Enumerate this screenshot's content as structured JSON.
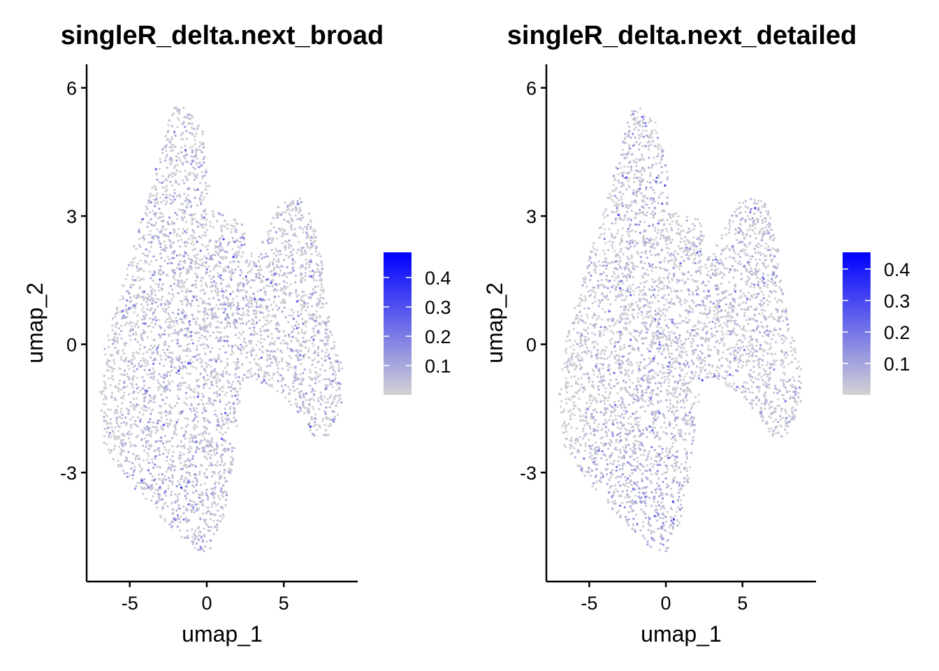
{
  "chart_data": [
    {
      "type": "scatter",
      "title": "singleR_delta.next_broad",
      "xlabel": "umap_1",
      "ylabel": "umap_2",
      "xticks": [
        -5,
        0,
        5
      ],
      "yticks": [
        -3,
        0,
        3,
        6
      ],
      "xlim": [
        -7.8,
        9.8
      ],
      "ylim": [
        -5.55,
        6.55
      ],
      "grid": false,
      "legend": {
        "position": "right",
        "type": "colorbar",
        "ticks": [
          0.4,
          0.3,
          0.2,
          0.1
        ],
        "tick_labels": [
          "0.4",
          "0.3",
          "0.2",
          "0.1"
        ],
        "range": [
          0.0,
          0.486
        ],
        "low_color": "#d3d3d3",
        "high_color": "#0000ff"
      },
      "points": {
        "n": 4000,
        "seed": 11,
        "value_scale": 0.055,
        "lower_boost": 0.04
      },
      "cloud_outline": [
        [
          -1.73,
          5.69
        ],
        [
          -0.27,
          5.03
        ],
        [
          0.18,
          3.81
        ],
        [
          0.18,
          3.15
        ],
        [
          0.86,
          3.07
        ],
        [
          2.23,
          2.91
        ],
        [
          2.55,
          2.5
        ],
        [
          2.23,
          1.85
        ],
        [
          3.36,
          2.34
        ],
        [
          4.73,
          3.32
        ],
        [
          6.09,
          3.48
        ],
        [
          6.77,
          3.15
        ],
        [
          7.45,
          2.01
        ],
        [
          7.91,
          0.7
        ],
        [
          8.82,
          -0.6
        ],
        [
          8.82,
          -1.42
        ],
        [
          7.91,
          -2.16
        ],
        [
          7.0,
          -2.16
        ],
        [
          6.09,
          -1.75
        ],
        [
          5.18,
          -1.26
        ],
        [
          2.91,
          -0.77
        ],
        [
          2.23,
          -1.09
        ],
        [
          2.0,
          -1.75
        ],
        [
          1.77,
          -2.73
        ],
        [
          1.09,
          -4.04
        ],
        [
          0.18,
          -4.85
        ],
        [
          -0.73,
          -4.85
        ],
        [
          -3.0,
          -4.04
        ],
        [
          -5.05,
          -3.22
        ],
        [
          -6.64,
          -2.4
        ],
        [
          -7.0,
          -1.26
        ],
        [
          -6.64,
          -0.11
        ],
        [
          -5.73,
          1.19
        ],
        [
          -4.36,
          2.83
        ],
        [
          -3.0,
          4.46
        ],
        [
          -2.32,
          5.44
        ]
      ]
    },
    {
      "type": "scatter",
      "title": "singleR_delta.next_detailed",
      "xlabel": "umap_1",
      "ylabel": "umap_2",
      "xticks": [
        -5,
        0,
        5
      ],
      "yticks": [
        -3,
        0,
        3,
        6
      ],
      "xlim": [
        -7.8,
        9.8
      ],
      "ylim": [
        -5.55,
        6.55
      ],
      "grid": false,
      "legend": {
        "position": "right",
        "type": "colorbar",
        "ticks": [
          0.4,
          0.3,
          0.2,
          0.1
        ],
        "tick_labels": [
          "0.4",
          "0.3",
          "0.2",
          "0.1"
        ],
        "range": [
          0.0,
          0.453
        ],
        "low_color": "#d3d3d3",
        "high_color": "#0000ff"
      },
      "points": {
        "n": 4000,
        "seed": 29,
        "value_scale": 0.05,
        "lower_boost": 0.06
      },
      "cloud_outline": [
        [
          -1.73,
          5.69
        ],
        [
          -0.27,
          5.03
        ],
        [
          0.18,
          3.81
        ],
        [
          0.18,
          3.15
        ],
        [
          0.86,
          3.07
        ],
        [
          2.23,
          2.91
        ],
        [
          2.55,
          2.5
        ],
        [
          2.23,
          1.85
        ],
        [
          3.36,
          2.34
        ],
        [
          4.73,
          3.32
        ],
        [
          6.09,
          3.48
        ],
        [
          6.77,
          3.15
        ],
        [
          7.45,
          2.01
        ],
        [
          7.91,
          0.7
        ],
        [
          8.82,
          -0.6
        ],
        [
          8.82,
          -1.42
        ],
        [
          7.91,
          -2.16
        ],
        [
          7.0,
          -2.16
        ],
        [
          6.09,
          -1.75
        ],
        [
          5.18,
          -1.26
        ],
        [
          2.91,
          -0.77
        ],
        [
          2.23,
          -1.09
        ],
        [
          2.0,
          -1.75
        ],
        [
          1.77,
          -2.73
        ],
        [
          1.09,
          -4.04
        ],
        [
          0.18,
          -4.85
        ],
        [
          -0.73,
          -4.85
        ],
        [
          -3.0,
          -4.04
        ],
        [
          -5.05,
          -3.22
        ],
        [
          -6.64,
          -2.4
        ],
        [
          -7.0,
          -1.26
        ],
        [
          -6.64,
          -0.11
        ],
        [
          -5.73,
          1.19
        ],
        [
          -4.36,
          2.83
        ],
        [
          -3.0,
          4.46
        ],
        [
          -2.32,
          5.44
        ]
      ]
    }
  ]
}
